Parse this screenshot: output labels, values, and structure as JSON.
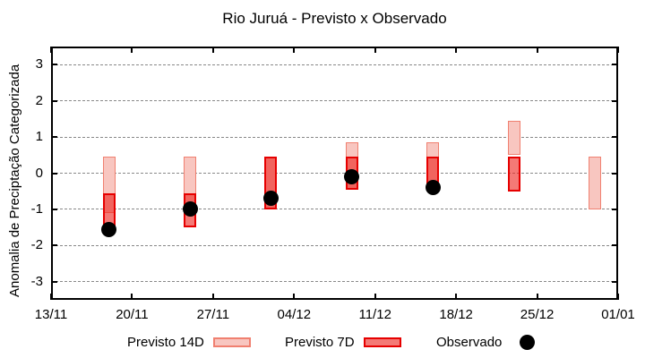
{
  "title": "Rio Juruá - Previsto x Observado",
  "colors": {
    "forecast14_fill": "#F8C6C0",
    "forecast14_border": "#F08070",
    "forecast7_fill": "rgba(238,40,34,0.62)",
    "forecast7_border": "#E60000",
    "observed": "#000000",
    "grid": "#888888",
    "plot_border": "#000000"
  },
  "chart_data": {
    "type": "bar",
    "subtype": "floating-range-bars-with-scatter",
    "title": "Rio Juruá - Previsto x Observado",
    "xlabel": "",
    "ylabel": "Anomalia de Preciptação Categorizada",
    "ylim": [
      -3.5,
      3.5
    ],
    "y_ticks": [
      -3,
      -2,
      -1,
      0,
      1,
      2,
      3
    ],
    "x_domain_days": [
      0,
      49
    ],
    "x_ticks": [
      {
        "label": "13/11",
        "day": 0
      },
      {
        "label": "20/11",
        "day": 7
      },
      {
        "label": "27/11",
        "day": 14
      },
      {
        "label": "04/12",
        "day": 21
      },
      {
        "label": "11/12",
        "day": 28
      },
      {
        "label": "18/12",
        "day": 35
      },
      {
        "label": "25/12",
        "day": 42
      },
      {
        "label": "01/01",
        "day": 49
      }
    ],
    "grid": true,
    "legend_position": "bottom",
    "series": [
      {
        "name": "Previsto 14D",
        "type": "range-bar",
        "points": [
          {
            "date": "18/11",
            "day": 5,
            "low": -1.1,
            "high": 0.45
          },
          {
            "date": "25/11",
            "day": 12,
            "low": -1.1,
            "high": 0.45
          },
          {
            "date": "02/12",
            "day": 19,
            "low": -1.0,
            "high": 0.45
          },
          {
            "date": "09/12",
            "day": 26,
            "low": -0.45,
            "high": 0.85
          },
          {
            "date": "16/12",
            "day": 33,
            "low": -0.45,
            "high": 0.85
          },
          {
            "date": "23/12",
            "day": 40,
            "low": 0.5,
            "high": 1.45
          },
          {
            "date": "30/12",
            "day": 47,
            "low": -1.0,
            "high": 0.45
          }
        ]
      },
      {
        "name": "Previsto 7D",
        "type": "range-bar",
        "points": [
          {
            "date": "18/11",
            "day": 5,
            "low": -1.5,
            "high": -0.55
          },
          {
            "date": "25/11",
            "day": 12,
            "low": -1.5,
            "high": -0.55
          },
          {
            "date": "02/12",
            "day": 19,
            "low": -1.0,
            "high": 0.45
          },
          {
            "date": "09/12",
            "day": 26,
            "low": -0.45,
            "high": 0.45
          },
          {
            "date": "16/12",
            "day": 33,
            "low": -0.45,
            "high": 0.45
          },
          {
            "date": "23/12",
            "day": 40,
            "low": -0.5,
            "high": 0.45
          }
        ]
      },
      {
        "name": "Observado",
        "type": "scatter",
        "points": [
          {
            "date": "18/11",
            "day": 5,
            "value": -1.55
          },
          {
            "date": "25/11",
            "day": 12,
            "value": -1.0
          },
          {
            "date": "02/12",
            "day": 19,
            "value": -0.7
          },
          {
            "date": "09/12",
            "day": 26,
            "value": -0.1
          },
          {
            "date": "16/12",
            "day": 33,
            "value": -0.4
          }
        ]
      }
    ]
  }
}
